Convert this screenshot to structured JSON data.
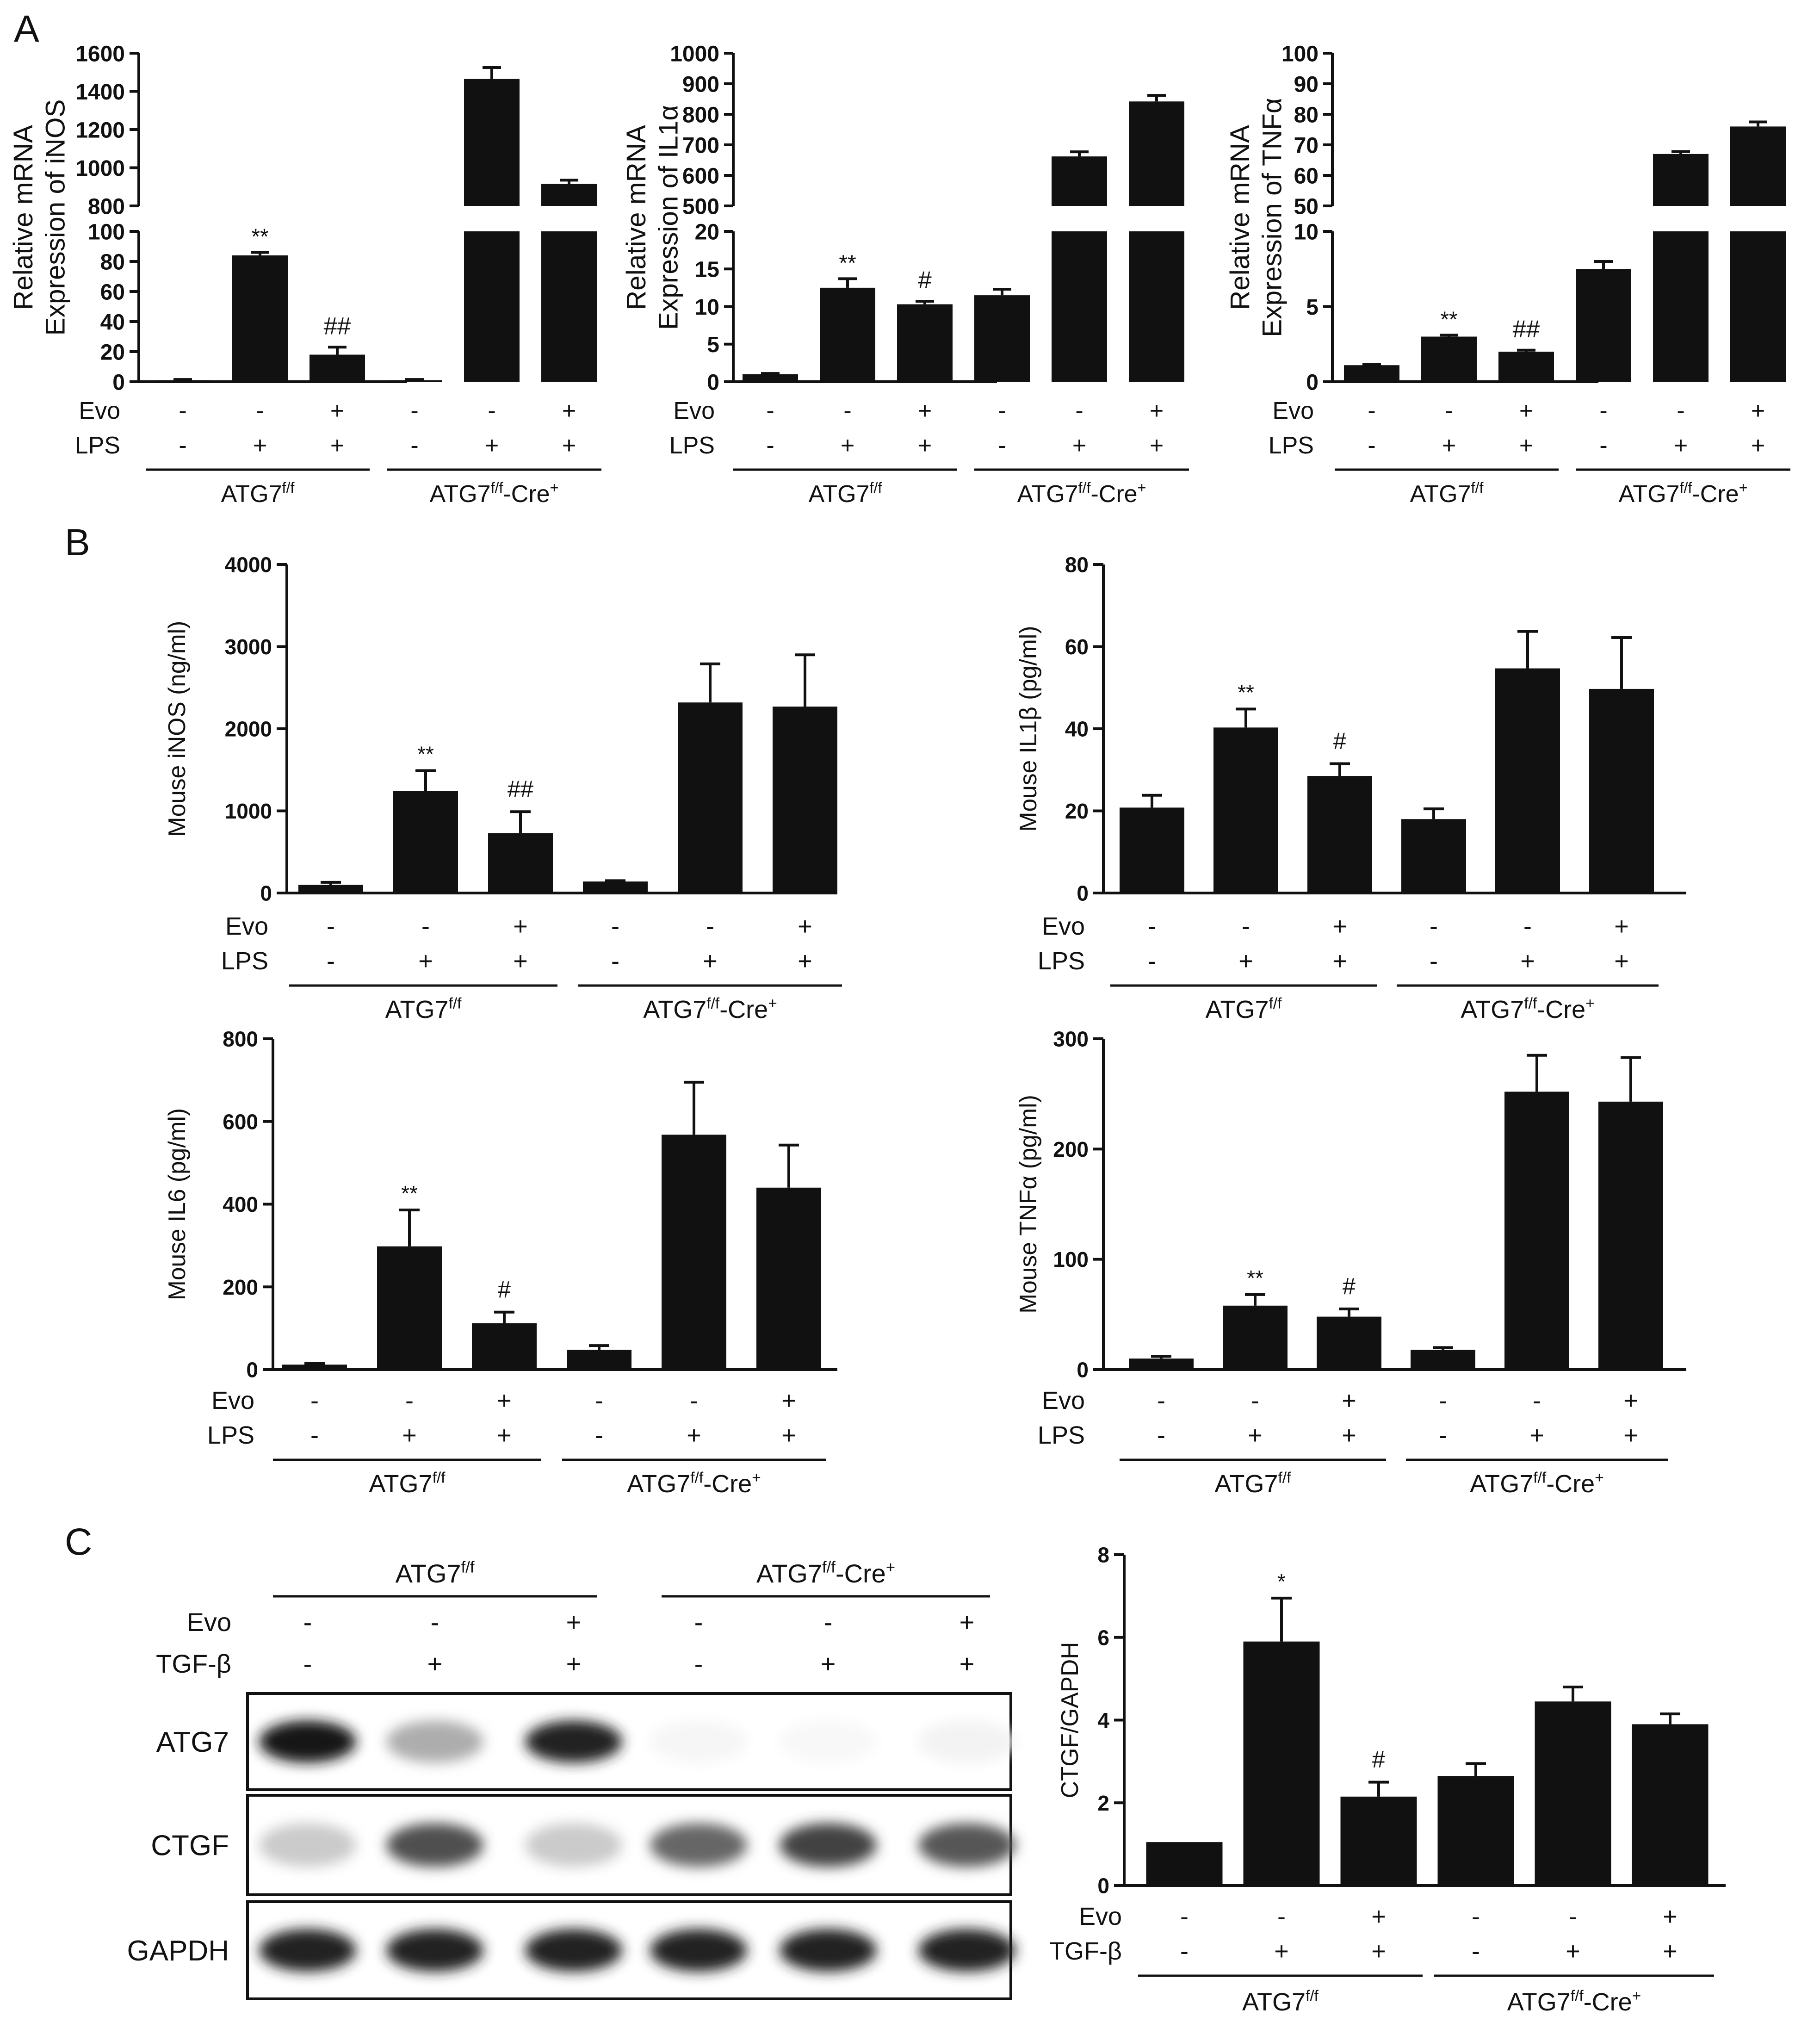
{
  "panels": [
    {
      "letter": "A"
    },
    {
      "letter": "B"
    },
    {
      "letter": "C"
    }
  ],
  "condition_rows": {
    "evo_label": "Evo",
    "lps_label": "LPS",
    "tgf_label": "TGF-β",
    "evo": [
      "-",
      "-",
      "+",
      "-",
      "-",
      "+"
    ],
    "stim": [
      "-",
      "+",
      "+",
      "-",
      "+",
      "+"
    ],
    "group_names": [
      "ATG7",
      "ATG7"
    ],
    "group_supers": [
      "f/f",
      "f/f"
    ],
    "group_suffix": [
      "",
      "-Cre"
    ],
    "group_suffix_super": [
      "",
      "+"
    ]
  },
  "blot": {
    "rows": [
      "ATG7",
      "CTGF",
      "GAPDH"
    ],
    "intensity": {
      "ATG7": [
        1.0,
        0.35,
        0.95,
        0.04,
        0.03,
        0.05
      ],
      "CTGF": [
        0.22,
        0.75,
        0.22,
        0.65,
        0.8,
        0.72
      ],
      "GAPDH": [
        0.95,
        0.95,
        0.95,
        0.95,
        0.95,
        0.95
      ]
    }
  },
  "chart_data": [
    {
      "id": "A-iNOS",
      "type": "bar",
      "title": "",
      "ylabel": [
        "Relative mRNA",
        "Expression of iNOS"
      ],
      "axis_break": true,
      "lower_ylim": [
        0,
        100
      ],
      "upper_ylim": [
        800,
        1600
      ],
      "lower_ticks": [
        "0",
        "20",
        "40",
        "60",
        "80",
        "100"
      ],
      "upper_ticks": [
        "800",
        "1000",
        "1200",
        "1400",
        "1600"
      ],
      "values": [
        1,
        84,
        18,
        1,
        1465,
        915
      ],
      "errors": [
        0.5,
        2,
        5,
        0.5,
        60,
        20
      ],
      "annotations": [
        "",
        "**",
        "##",
        "",
        "",
        ""
      ]
    },
    {
      "id": "A-IL1a",
      "type": "bar",
      "title": "",
      "ylabel": [
        "Relative mRNA",
        "Expression of IL1α"
      ],
      "axis_break": true,
      "lower_ylim": [
        0,
        20
      ],
      "upper_ylim": [
        500,
        1000
      ],
      "lower_ticks": [
        "0",
        "5",
        "10",
        "15",
        "20"
      ],
      "upper_ticks": [
        "500",
        "600",
        "700",
        "800",
        "900",
        "1000"
      ],
      "values": [
        1,
        12.5,
        10.3,
        11.5,
        662,
        842
      ],
      "errors": [
        0.1,
        1.2,
        0.4,
        0.8,
        15,
        20
      ],
      "annotations": [
        "",
        "**",
        "#",
        "",
        "",
        ""
      ]
    },
    {
      "id": "A-TNFa",
      "type": "bar",
      "title": "",
      "ylabel": [
        "Relative mRNA",
        "Expression of TNFα"
      ],
      "axis_break": true,
      "lower_ylim": [
        0,
        10
      ],
      "upper_ylim": [
        50,
        100
      ],
      "lower_ticks": [
        "0",
        "5",
        "10"
      ],
      "upper_ticks": [
        "50",
        "60",
        "70",
        "80",
        "90",
        "100"
      ],
      "values": [
        1.1,
        3.0,
        2.0,
        7.5,
        67,
        76
      ],
      "errors": [
        0.05,
        0.1,
        0.1,
        0.5,
        0.8,
        1.5
      ],
      "annotations": [
        "",
        "**",
        "##",
        "",
        "",
        ""
      ]
    },
    {
      "id": "B-iNOS",
      "type": "bar",
      "title": "",
      "ylabel": [
        "Mouse iNOS (ng/ml)"
      ],
      "ylim": [
        0,
        4000
      ],
      "ticks": [
        "0",
        "1000",
        "2000",
        "3000",
        "4000"
      ],
      "values": [
        100,
        1240,
        730,
        140,
        2320,
        2270
      ],
      "errors": [
        30,
        250,
        260,
        10,
        470,
        630
      ],
      "annotations": [
        "",
        "**",
        "##",
        "",
        "",
        ""
      ]
    },
    {
      "id": "B-IL1b",
      "type": "bar",
      "title": "",
      "ylabel": [
        "Mouse IL1β (pg/ml)"
      ],
      "ylim": [
        0,
        80
      ],
      "ticks": [
        "0",
        "20",
        "40",
        "60",
        "80"
      ],
      "values": [
        20.8,
        40.3,
        28.5,
        18.0,
        54.7,
        49.7
      ],
      "errors": [
        3,
        4.5,
        3,
        2.5,
        9,
        12.5
      ],
      "annotations": [
        "",
        "**",
        "#",
        "",
        "",
        ""
      ]
    },
    {
      "id": "B-IL6",
      "type": "bar",
      "title": "",
      "ylabel": [
        "Mouse IL6 (pg/ml)"
      ],
      "ylim": [
        0,
        800
      ],
      "ticks": [
        "0",
        "200",
        "400",
        "600",
        "800"
      ],
      "values": [
        12,
        298,
        112,
        48,
        568,
        440
      ],
      "errors": [
        3,
        88,
        27,
        10,
        127,
        103
      ],
      "annotations": [
        "",
        "**",
        "#",
        "",
        "",
        ""
      ]
    },
    {
      "id": "B-TNFa",
      "type": "bar",
      "title": "",
      "ylabel": [
        "Mouse TNFα (pg/ml)"
      ],
      "ylim": [
        0,
        300
      ],
      "ticks": [
        "0",
        "100",
        "200",
        "300"
      ],
      "values": [
        10,
        58,
        48,
        18,
        252,
        243
      ],
      "errors": [
        2,
        10,
        7,
        2,
        33,
        40
      ],
      "annotations": [
        "",
        "**",
        "#",
        "",
        "",
        ""
      ]
    },
    {
      "id": "C-CTGF",
      "type": "bar",
      "title": "",
      "ylabel": [
        "CTGF/GAPDH"
      ],
      "ylim": [
        0,
        8
      ],
      "ticks": [
        "0",
        "2",
        "4",
        "6",
        "8"
      ],
      "values": [
        1.05,
        5.9,
        2.15,
        2.65,
        4.45,
        3.9
      ],
      "errors": [
        0,
        1.05,
        0.35,
        0.3,
        0.35,
        0.25
      ],
      "annotations": [
        "",
        "*",
        "#",
        "",
        "",
        ""
      ]
    }
  ]
}
